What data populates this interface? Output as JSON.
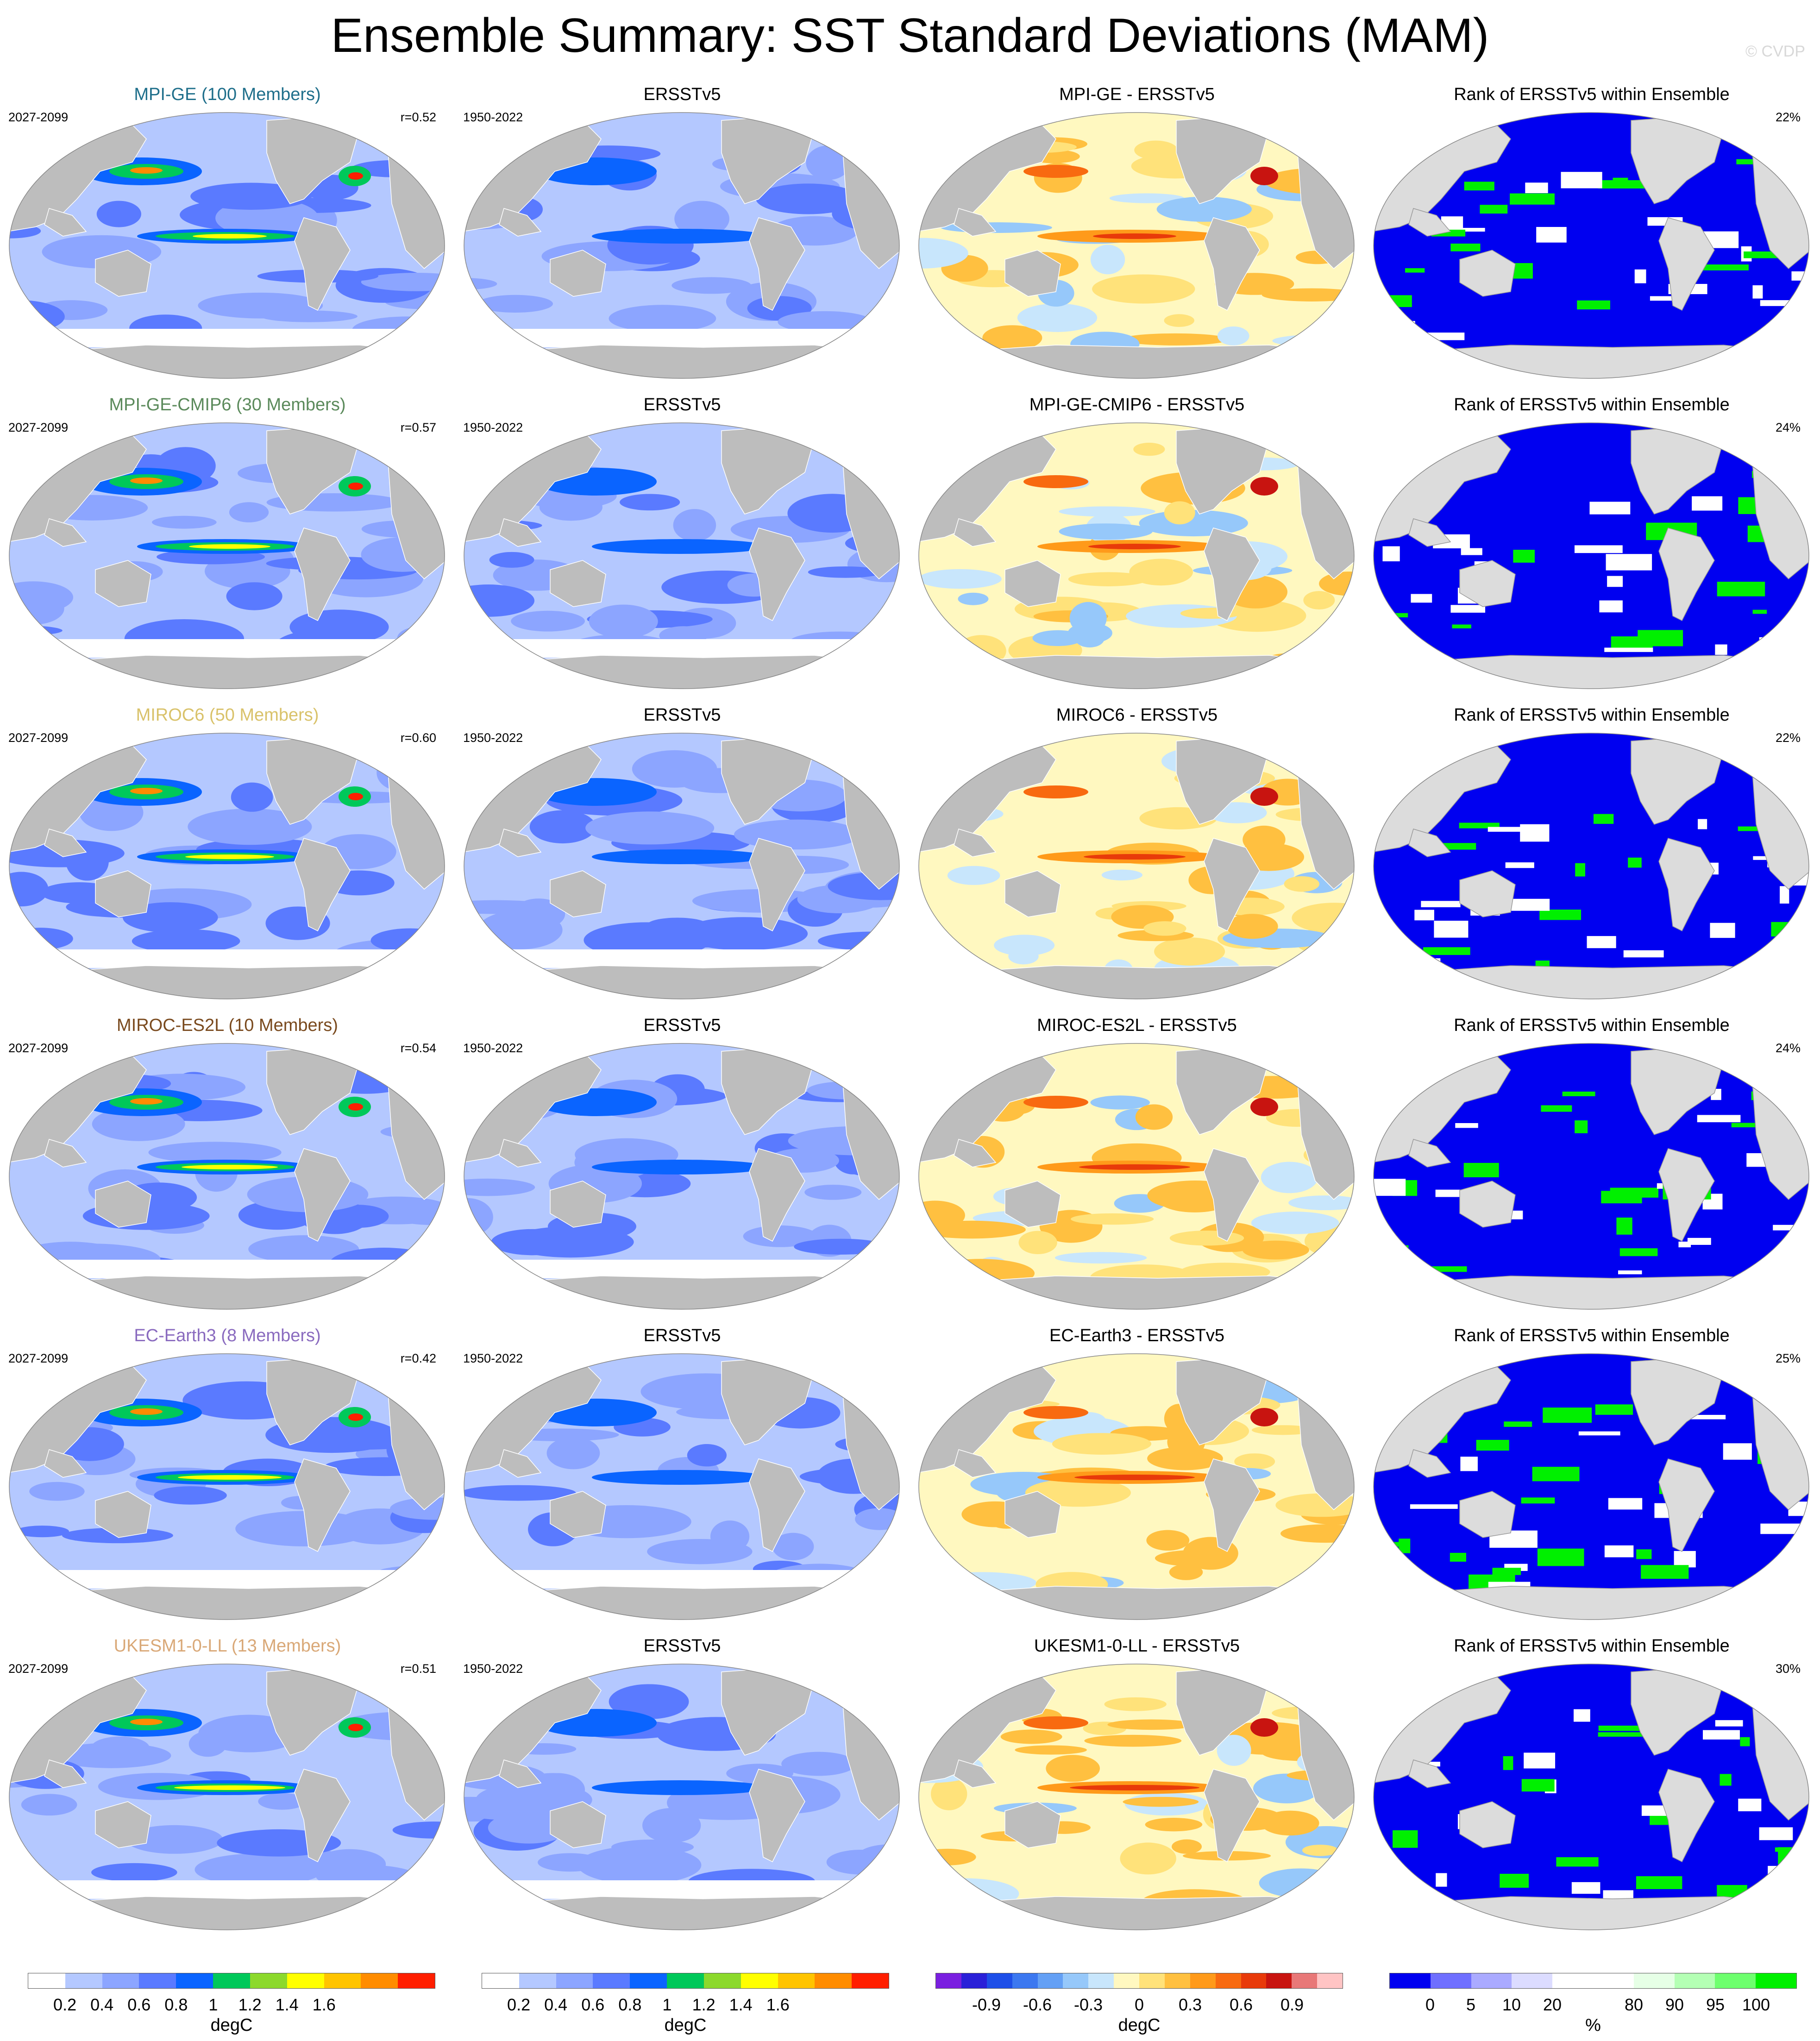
{
  "title": "Ensemble Summary: SST Standard Deviations (MAM)",
  "copyright": "© CVDP",
  "rows": [
    {
      "model": {
        "title": "MPI-GE (100 Members)",
        "color": "#1f6f8b",
        "years": "2027-2099",
        "corr": "r=0.52",
        "variant": 0
      },
      "obs": {
        "title": "ERSSTv5",
        "years": "1950-2022"
      },
      "diff": {
        "title": "MPI-GE - ERSSTv5"
      },
      "rank": {
        "title": "Rank of ERSSTv5 within Ensemble",
        "pct": "22%"
      }
    },
    {
      "model": {
        "title": "MPI-GE-CMIP6 (30 Members)",
        "color": "#5b8a5b",
        "years": "2027-2099",
        "corr": "r=0.57",
        "variant": 1
      },
      "obs": {
        "title": "ERSSTv5",
        "years": "1950-2022"
      },
      "diff": {
        "title": "MPI-GE-CMIP6 - ERSSTv5"
      },
      "rank": {
        "title": "Rank of ERSSTv5 within Ensemble",
        "pct": "24%"
      }
    },
    {
      "model": {
        "title": "MIROC6 (50 Members)",
        "color": "#d9c26a",
        "years": "2027-2099",
        "corr": "r=0.60",
        "variant": 2
      },
      "obs": {
        "title": "ERSSTv5",
        "years": "1950-2022"
      },
      "diff": {
        "title": "MIROC6 - ERSSTv5"
      },
      "rank": {
        "title": "Rank of ERSSTv5 within Ensemble",
        "pct": "22%"
      }
    },
    {
      "model": {
        "title": "MIROC-ES2L (10 Members)",
        "color": "#7a4a1e",
        "years": "2027-2099",
        "corr": "r=0.54",
        "variant": 3
      },
      "obs": {
        "title": "ERSSTv5",
        "years": "1950-2022"
      },
      "diff": {
        "title": "MIROC-ES2L - ERSSTv5"
      },
      "rank": {
        "title": "Rank of ERSSTv5 within Ensemble",
        "pct": "24%"
      }
    },
    {
      "model": {
        "title": "EC-Earth3 (8 Members)",
        "color": "#8a6bbf",
        "years": "2027-2099",
        "corr": "r=0.42",
        "variant": 4
      },
      "obs": {
        "title": "ERSSTv5",
        "years": "1950-2022"
      },
      "diff": {
        "title": "EC-Earth3 - ERSSTv5"
      },
      "rank": {
        "title": "Rank of ERSSTv5 within Ensemble",
        "pct": "25%"
      }
    },
    {
      "model": {
        "title": "UKESM1-0-LL (13 Members)",
        "color": "#d9a877",
        "years": "2027-2099",
        "corr": "r=0.51",
        "variant": 5
      },
      "obs": {
        "title": "ERSSTv5",
        "years": "1950-2022"
      },
      "diff": {
        "title": "UKESM1-0-LL - ERSSTv5"
      },
      "rank": {
        "title": "Rank of ERSSTv5 within Ensemble",
        "pct": "30%"
      }
    }
  ],
  "colorbars": [
    {
      "name": "sst-stddev-model",
      "colors": [
        "#ffffff",
        "#b4c8ff",
        "#8ca5ff",
        "#5a7aff",
        "#0a64ff",
        "#00c85a",
        "#8cd92c",
        "#ffff00",
        "#ffc400",
        "#ff8c00",
        "#ff1e00"
      ],
      "ticks": [
        "0.2",
        "0.4",
        "0.6",
        "0.8",
        "1",
        "1.2",
        "1.4",
        "1.6"
      ],
      "unit": "degC"
    },
    {
      "name": "sst-stddev-obs",
      "colors": [
        "#ffffff",
        "#b4c8ff",
        "#8ca5ff",
        "#5a7aff",
        "#0a64ff",
        "#00c85a",
        "#8cd92c",
        "#ffff00",
        "#ffc400",
        "#ff8c00",
        "#ff1e00"
      ],
      "ticks": [
        "0.2",
        "0.4",
        "0.6",
        "0.8",
        "1",
        "1.2",
        "1.4",
        "1.6"
      ],
      "unit": "degC"
    },
    {
      "name": "sst-stddev-difference",
      "colors": [
        "#7a1fe0",
        "#2a20d8",
        "#1e4fe8",
        "#3c78f0",
        "#64a0f5",
        "#96c8fa",
        "#c8e6fc",
        "#fff8c0",
        "#ffe27a",
        "#ffc040",
        "#ff9a1a",
        "#f86a10",
        "#e83a0a",
        "#c81410",
        "#e87878",
        "#ffc4c4"
      ],
      "ticks": [
        "-0.9",
        "-0.6",
        "-0.3",
        "0",
        "0.3",
        "0.6",
        "0.9"
      ],
      "unit": "degC"
    },
    {
      "name": "rank-percent",
      "colors": [
        "#0000f0",
        "#6f6fff",
        "#aaaaff",
        "#dcdcff",
        "#ffffff",
        "#ffffff",
        "#e6ffe6",
        "#b4ffb4",
        "#6eff6e",
        "#00f000"
      ],
      "ticks": [
        "0",
        "5",
        "10",
        "20",
        "80",
        "90",
        "95",
        "100"
      ],
      "unit": "%"
    }
  ]
}
